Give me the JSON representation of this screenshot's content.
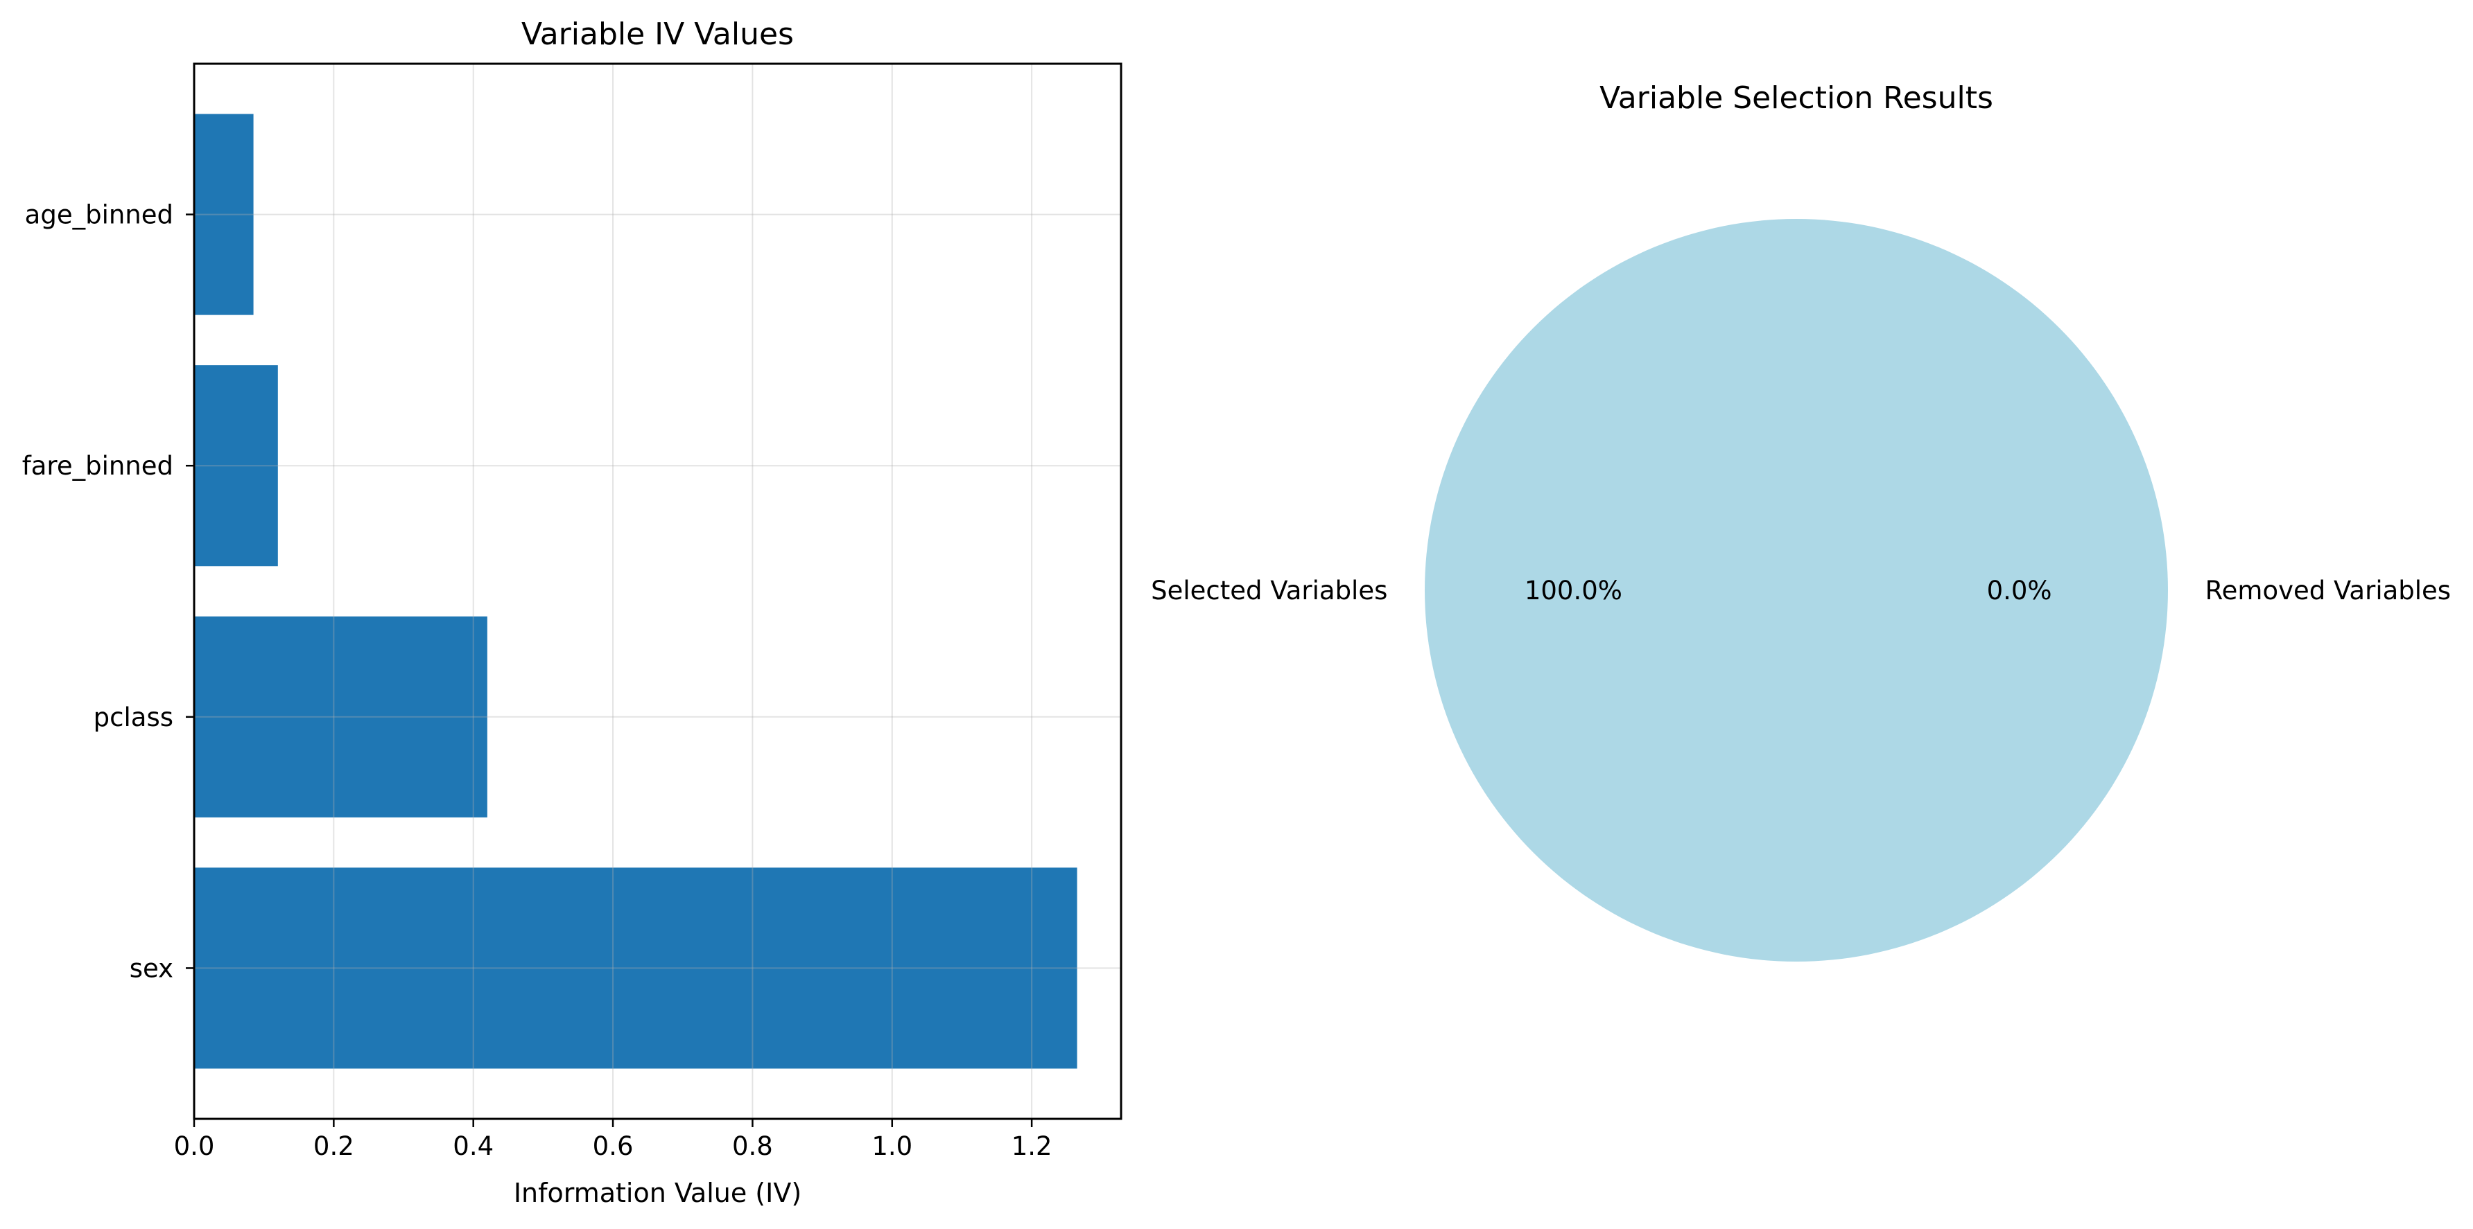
{
  "chart_data": [
    {
      "type": "bar",
      "orientation": "horizontal",
      "title": "Variable IV Values",
      "xlabel": "Information Value (IV)",
      "ylabel": "",
      "categories": [
        "sex",
        "pclass",
        "fare_binned",
        "age_binned"
      ],
      "values": [
        1.265,
        0.42,
        0.12,
        0.085
      ],
      "xlim": [
        0.0,
        1.328
      ],
      "xticks": [
        0.0,
        0.2,
        0.4,
        0.6,
        0.8,
        1.0,
        1.2
      ],
      "xtick_labels": [
        "0.0",
        "0.2",
        "0.4",
        "0.6",
        "0.8",
        "1.0",
        "1.2"
      ],
      "grid": true,
      "bar_color": "#1f77b4"
    },
    {
      "type": "pie",
      "title": "Variable Selection Results",
      "labels": [
        "Selected Variables",
        "Removed Variables"
      ],
      "values": [
        100.0,
        0.0
      ],
      "percent_labels": [
        "100.0%",
        "0.0%"
      ],
      "colors": [
        "#add8e6",
        "#f08080"
      ]
    }
  ]
}
